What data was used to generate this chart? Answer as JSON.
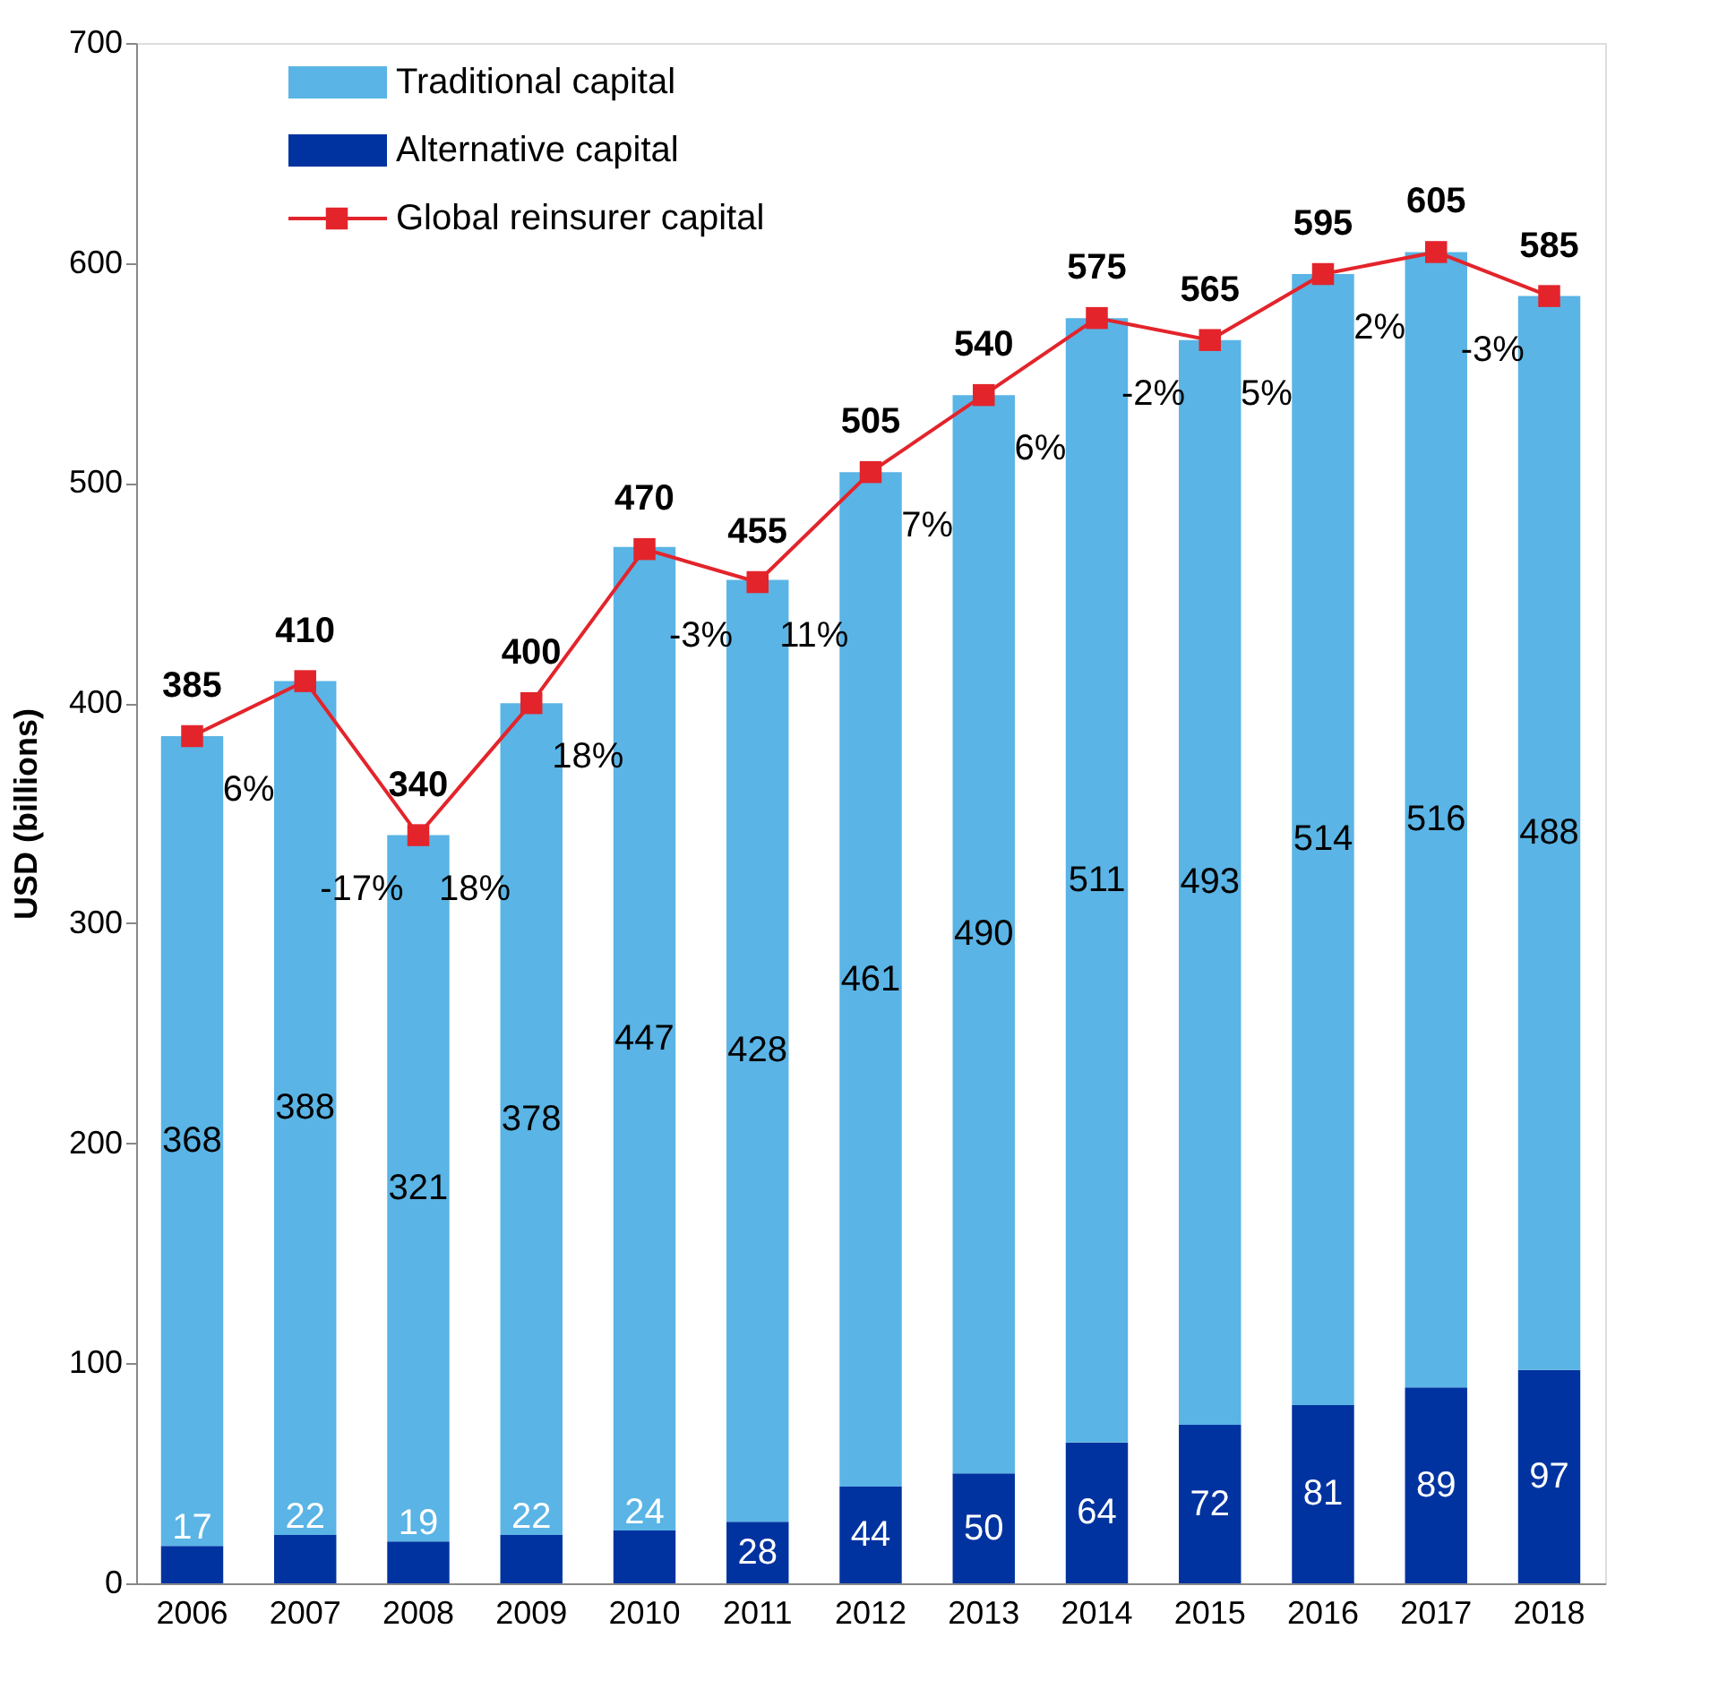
{
  "chart_data": {
    "type": "bar",
    "stacked": true,
    "ylabel": "USD (billions)",
    "categories": [
      "2006",
      "2007",
      "2008",
      "2009",
      "2010",
      "2011",
      "2012",
      "2013",
      "2014",
      "2015",
      "2016",
      "2017",
      "2018"
    ],
    "series": [
      {
        "name": "Alternative capital",
        "color": "#0033a0",
        "values": [
          17,
          22,
          19,
          22,
          24,
          28,
          44,
          50,
          64,
          72,
          81,
          89,
          97
        ]
      },
      {
        "name": "Traditional capital",
        "color": "#5ab4e5",
        "values": [
          368,
          388,
          321,
          378,
          447,
          428,
          461,
          490,
          511,
          493,
          514,
          516,
          488
        ]
      },
      {
        "name": "Global reinsurer capital",
        "type": "line",
        "color": "#e3242b",
        "marker": "square",
        "values": [
          385,
          410,
          340,
          400,
          470,
          455,
          505,
          540,
          575,
          565,
          595,
          605,
          585
        ]
      }
    ],
    "annotations": [
      "6%",
      "-17%",
      "18%",
      "18%",
      "-3%",
      "11%",
      "7%",
      "6%",
      "-2%",
      "5%",
      "2%",
      "-3%"
    ],
    "ylim": [
      0,
      700
    ],
    "yticks": [
      0,
      100,
      200,
      300,
      400,
      500,
      600,
      700
    ],
    "grid": false,
    "legend": "top left",
    "data_labels": true
  }
}
